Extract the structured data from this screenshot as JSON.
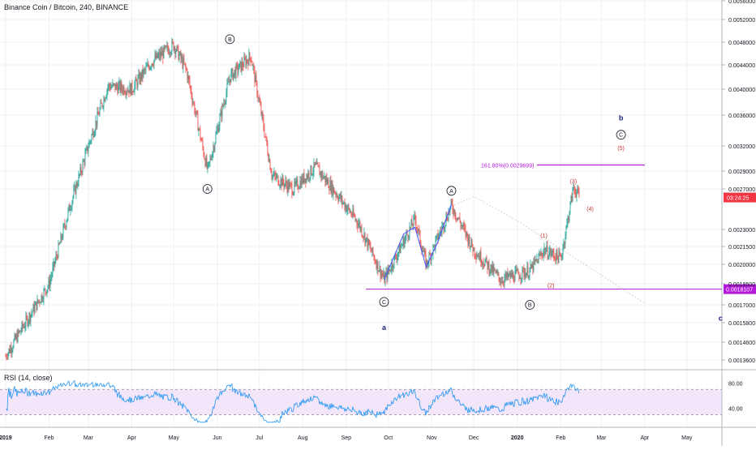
{
  "header": {
    "title": "Binance Coin / Bitcoin, 240, BINANCE"
  },
  "rsi": {
    "title": "RSI (14, close)",
    "ticks": [
      "80.00",
      "40.00"
    ],
    "upper": 70,
    "lower": 30
  },
  "colors": {
    "up": "#26a69a",
    "down": "#ef5350",
    "rsi_line": "#2196f3",
    "rsi_band": "#f3e5fa",
    "purple": "#b41adb",
    "wave_navy": "#1a237e",
    "wave_red": "#d32f2f",
    "price_tag_red": "#f23645"
  },
  "chart_data": {
    "type": "candlestick",
    "symbol": "BNB/BTC",
    "interval": "240",
    "exchange": "BINANCE",
    "y_axis_labels": [
      "0.0056000",
      "0.0052000",
      "0.0048000",
      "0.0044000",
      "0.0040000",
      "0.0036000",
      "0.0032000",
      "0.0029000",
      "0.0027000",
      "0.0023000",
      "0.0021500",
      "0.0020000",
      "0.0018500",
      "0.0017000",
      "0.0015800",
      "0.0014600",
      "0.0013600"
    ],
    "x_axis_labels": [
      "2019",
      "Feb",
      "Mar",
      "Apr",
      "May",
      "Jun",
      "Jul",
      "Aug",
      "Sep",
      "Oct",
      "Nov",
      "Dec",
      "2020",
      "Feb",
      "Mar",
      "Apr",
      "May"
    ],
    "last_price_label": "03:24:25",
    "support_price_label": "0.0018107",
    "fib_label": "161.80%(0.0029699)",
    "price_path": [
      [
        "2019-01-01",
        0.00138
      ],
      [
        "2019-01-15",
        0.00158
      ],
      [
        "2019-02-01",
        0.00185
      ],
      [
        "2019-02-15",
        0.00248
      ],
      [
        "2019-03-01",
        0.0032
      ],
      [
        "2019-03-15",
        0.00405
      ],
      [
        "2019-04-01",
        0.004
      ],
      [
        "2019-04-15",
        0.00445
      ],
      [
        "2019-05-01",
        0.00475
      ],
      [
        "2019-05-10",
        0.0043
      ],
      [
        "2019-05-25",
        0.0029
      ],
      [
        "2019-06-10",
        0.0042
      ],
      [
        "2019-06-25",
        0.00455
      ],
      [
        "2019-07-10",
        0.00285
      ],
      [
        "2019-07-25",
        0.0027
      ],
      [
        "2019-08-10",
        0.00295
      ],
      [
        "2019-08-25",
        0.00265
      ],
      [
        "2019-09-10",
        0.00235
      ],
      [
        "2019-09-28",
        0.00188
      ],
      [
        "2019-10-10",
        0.00215
      ],
      [
        "2019-10-20",
        0.0024
      ],
      [
        "2019-10-28",
        0.002
      ],
      [
        "2019-11-15",
        0.00253
      ],
      [
        "2019-12-01",
        0.00212
      ],
      [
        "2019-12-20",
        0.00188
      ],
      [
        "2020-01-10",
        0.00195
      ],
      [
        "2020-01-20",
        0.00212
      ],
      [
        "2020-02-01",
        0.00205
      ],
      [
        "2020-02-10",
        0.00272
      ],
      [
        "2020-02-14",
        0.00262
      ]
    ],
    "support_level": 0.0018107,
    "fib_level": 0.0029699,
    "wave_labels": [
      {
        "text": "B",
        "date": "2019-06-10",
        "price": 0.00485,
        "style": "circled"
      },
      {
        "text": "A",
        "date": "2019-05-25",
        "price": 0.0027,
        "style": "circled"
      },
      {
        "text": "C",
        "date": "2019-09-28",
        "price": 0.00172,
        "style": "circled"
      },
      {
        "text": "a",
        "date": "2019-09-28",
        "price": 0.00155,
        "style": "bold"
      },
      {
        "text": "A",
        "date": "2019-11-15",
        "price": 0.00268,
        "style": "circled"
      },
      {
        "text": "B",
        "date": "2020-01-10",
        "price": 0.0017,
        "style": "circled"
      },
      {
        "text": "(1)",
        "date": "2020-01-20",
        "price": 0.00225,
        "style": "red"
      },
      {
        "text": "(2)",
        "date": "2020-01-25",
        "price": 0.00184,
        "style": "red"
      },
      {
        "text": "(3)",
        "date": "2020-02-10",
        "price": 0.00279,
        "style": "red"
      },
      {
        "text": "(4)",
        "date": "2020-02-22",
        "price": 0.0025,
        "style": "red"
      },
      {
        "text": "(5)",
        "date": "2020-03-15",
        "price": 0.00318,
        "style": "red"
      },
      {
        "text": "C",
        "date": "2020-03-15",
        "price": 0.00334,
        "style": "circled"
      },
      {
        "text": "b",
        "date": "2020-03-15",
        "price": 0.00356,
        "style": "bold"
      },
      {
        "text": "c",
        "date": "2020-05-25",
        "price": 0.00161,
        "style": "bold"
      }
    ]
  }
}
